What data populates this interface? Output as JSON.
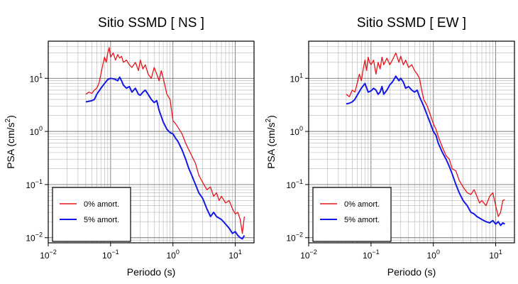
{
  "chart_data": [
    {
      "type": "line",
      "title": "Sitio SSMD [ NS ]",
      "xlabel": "Periodo (s)",
      "ylabel_main": "PSA (cm/s",
      "ylabel_sup": "2",
      "ylabel_close": ")",
      "xscale": "log",
      "yscale": "log",
      "xlim": [
        0.01,
        20
      ],
      "ylim": [
        0.008,
        50
      ],
      "grid": true,
      "legend_position": "bottom-left",
      "x_ticks": [
        {
          "base": "10",
          "exp": "−2",
          "value": 0.01
        },
        {
          "base": "10",
          "exp": "−1",
          "value": 0.1
        },
        {
          "base": "10",
          "exp": "0",
          "value": 1
        },
        {
          "base": "10",
          "exp": "1",
          "value": 10
        }
      ],
      "y_ticks": [
        {
          "base": "10",
          "exp": "−2",
          "value": 0.01
        },
        {
          "base": "10",
          "exp": "−1",
          "value": 0.1
        },
        {
          "base": "10",
          "exp": "0",
          "value": 1
        },
        {
          "base": "10",
          "exp": "1",
          "value": 10
        }
      ],
      "series": [
        {
          "name": "0% amort.",
          "color": "#e8141c",
          "x": [
            0.04,
            0.045,
            0.05,
            0.055,
            0.06,
            0.065,
            0.07,
            0.075,
            0.08,
            0.085,
            0.09,
            0.095,
            0.1,
            0.11,
            0.12,
            0.13,
            0.14,
            0.15,
            0.16,
            0.18,
            0.2,
            0.22,
            0.25,
            0.28,
            0.3,
            0.33,
            0.36,
            0.4,
            0.45,
            0.5,
            0.55,
            0.6,
            0.65,
            0.7,
            0.8,
            0.9,
            1.0,
            1.1,
            1.2,
            1.4,
            1.6,
            1.8,
            2.0,
            2.3,
            2.6,
            3.0,
            3.5,
            4.0,
            4.5,
            5.0,
            5.5,
            6.0,
            7.0,
            8.0,
            9.0,
            10.0,
            11.0,
            12.0,
            13.0,
            14.0
          ],
          "y": [
            5.0,
            5.5,
            5.2,
            6.0,
            6.5,
            8.0,
            12.0,
            18.0,
            25.0,
            20.0,
            30.0,
            38.0,
            25.0,
            30.0,
            22.0,
            28.0,
            24.0,
            26.0,
            20.0,
            22.0,
            18.0,
            16.0,
            20.0,
            14.0,
            22.0,
            15.0,
            18.0,
            12.0,
            10.0,
            16.0,
            12.0,
            9.0,
            14.0,
            10.0,
            5.0,
            4.0,
            1.6,
            1.4,
            1.2,
            0.9,
            0.6,
            0.45,
            0.35,
            0.25,
            0.15,
            0.11,
            0.08,
            0.09,
            0.06,
            0.07,
            0.05,
            0.06,
            0.045,
            0.05,
            0.035,
            0.028,
            0.03,
            0.022,
            0.012,
            0.025
          ]
        },
        {
          "name": "5% amort.",
          "color": "#1418e6",
          "x": [
            0.04,
            0.045,
            0.05,
            0.055,
            0.06,
            0.07,
            0.08,
            0.09,
            0.1,
            0.11,
            0.12,
            0.13,
            0.14,
            0.15,
            0.16,
            0.18,
            0.2,
            0.22,
            0.25,
            0.28,
            0.3,
            0.33,
            0.36,
            0.4,
            0.45,
            0.5,
            0.55,
            0.6,
            0.7,
            0.8,
            0.9,
            1.0,
            1.1,
            1.2,
            1.4,
            1.6,
            1.8,
            2.0,
            2.3,
            2.6,
            3.0,
            3.5,
            4.0,
            4.5,
            5.0,
            6.0,
            7.0,
            8.0,
            9.0,
            10.0,
            11.0,
            12.0,
            13.0,
            14.0
          ],
          "y": [
            3.6,
            3.7,
            3.8,
            4.0,
            5.0,
            6.5,
            8.0,
            9.5,
            10.0,
            9.8,
            9.5,
            9.0,
            10.5,
            9.0,
            7.5,
            6.5,
            7.0,
            5.5,
            6.5,
            5.0,
            4.8,
            5.5,
            6.0,
            5.0,
            4.0,
            3.5,
            3.8,
            2.5,
            1.5,
            1.1,
            0.95,
            0.9,
            0.75,
            0.65,
            0.45,
            0.3,
            0.2,
            0.15,
            0.1,
            0.07,
            0.055,
            0.035,
            0.025,
            0.03,
            0.025,
            0.022,
            0.018,
            0.015,
            0.012,
            0.013,
            0.011,
            0.01,
            0.0095,
            0.011
          ]
        }
      ]
    },
    {
      "type": "line",
      "title": "Sitio SSMD [ EW ]",
      "xlabel": "Periodo (s)",
      "ylabel_main": "PSA (cm/s",
      "ylabel_sup": "2",
      "ylabel_close": ")",
      "xscale": "log",
      "yscale": "log",
      "xlim": [
        0.01,
        20
      ],
      "ylim": [
        0.008,
        50
      ],
      "grid": true,
      "legend_position": "bottom-left",
      "x_ticks": [
        {
          "base": "10",
          "exp": "−2",
          "value": 0.01
        },
        {
          "base": "10",
          "exp": "−1",
          "value": 0.1
        },
        {
          "base": "10",
          "exp": "0",
          "value": 1
        },
        {
          "base": "10",
          "exp": "1",
          "value": 10
        }
      ],
      "y_ticks": [
        {
          "base": "10",
          "exp": "−2",
          "value": 0.01
        },
        {
          "base": "10",
          "exp": "−1",
          "value": 0.1
        },
        {
          "base": "10",
          "exp": "0",
          "value": 1
        },
        {
          "base": "10",
          "exp": "1",
          "value": 10
        }
      ],
      "series": [
        {
          "name": "0% amort.",
          "color": "#e8141c",
          "x": [
            0.04,
            0.045,
            0.05,
            0.055,
            0.06,
            0.065,
            0.07,
            0.075,
            0.08,
            0.085,
            0.09,
            0.095,
            0.1,
            0.11,
            0.12,
            0.13,
            0.14,
            0.15,
            0.16,
            0.18,
            0.2,
            0.22,
            0.25,
            0.28,
            0.3,
            0.33,
            0.36,
            0.4,
            0.45,
            0.5,
            0.55,
            0.6,
            0.65,
            0.7,
            0.8,
            0.9,
            1.0,
            1.1,
            1.2,
            1.4,
            1.6,
            1.8,
            2.0,
            2.3,
            2.6,
            3.0,
            3.5,
            4.0,
            4.5,
            5.0,
            5.5,
            6.0,
            7.0,
            8.0,
            9.0,
            10.0,
            11.0,
            12.0,
            13.0,
            14.0
          ],
          "y": [
            5.0,
            4.5,
            6.0,
            5.5,
            8.0,
            12.0,
            9.0,
            15.0,
            22.0,
            14.0,
            25.0,
            20.0,
            18.0,
            22.0,
            12.0,
            20.0,
            15.0,
            25.0,
            18.0,
            24.0,
            18.0,
            22.0,
            30.0,
            20.0,
            26.0,
            18.0,
            22.0,
            16.0,
            18.0,
            14.0,
            12.0,
            10.0,
            6.0,
            4.0,
            3.0,
            2.0,
            1.4,
            1.1,
            0.8,
            0.5,
            0.35,
            0.3,
            0.2,
            0.18,
            0.12,
            0.09,
            0.07,
            0.065,
            0.08,
            0.06,
            0.045,
            0.05,
            0.04,
            0.06,
            0.07,
            0.04,
            0.025,
            0.03,
            0.05,
            0.052
          ]
        },
        {
          "name": "5% amort.",
          "color": "#1418e6",
          "x": [
            0.04,
            0.045,
            0.05,
            0.055,
            0.06,
            0.07,
            0.08,
            0.09,
            0.1,
            0.11,
            0.12,
            0.13,
            0.14,
            0.15,
            0.16,
            0.18,
            0.2,
            0.22,
            0.25,
            0.28,
            0.3,
            0.33,
            0.36,
            0.4,
            0.45,
            0.5,
            0.55,
            0.6,
            0.7,
            0.8,
            0.9,
            1.0,
            1.1,
            1.2,
            1.4,
            1.6,
            1.8,
            2.0,
            2.3,
            2.6,
            3.0,
            3.5,
            4.0,
            4.5,
            5.0,
            6.0,
            7.0,
            8.0,
            9.0,
            10.0,
            11.0,
            12.0,
            13.0,
            14.0
          ],
          "y": [
            3.3,
            3.4,
            3.6,
            4.0,
            4.8,
            6.5,
            8.0,
            5.5,
            5.8,
            6.5,
            6.0,
            5.0,
            5.5,
            7.0,
            5.0,
            6.0,
            7.5,
            8.5,
            11.0,
            9.0,
            10.0,
            8.5,
            6.5,
            7.0,
            6.0,
            5.5,
            6.0,
            4.5,
            3.0,
            2.0,
            1.4,
            1.0,
            0.85,
            0.6,
            0.4,
            0.3,
            0.22,
            0.16,
            0.1,
            0.07,
            0.05,
            0.04,
            0.03,
            0.028,
            0.025,
            0.022,
            0.02,
            0.019,
            0.021,
            0.018,
            0.02,
            0.017,
            0.019,
            0.018
          ]
        }
      ]
    }
  ]
}
